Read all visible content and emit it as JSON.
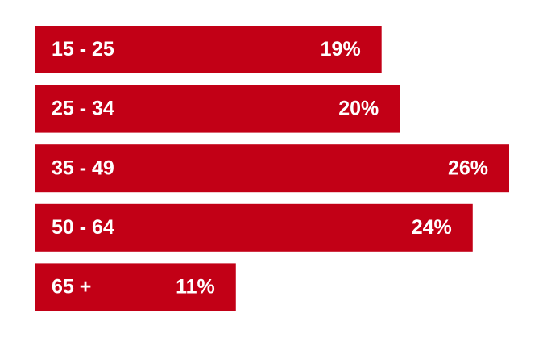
{
  "chart_data": {
    "type": "hbar",
    "categories": [
      "15 - 25",
      "25 - 34",
      "35 - 49",
      "50 - 64",
      "65 +"
    ],
    "values": [
      19,
      20,
      26,
      24,
      11
    ],
    "value_labels": [
      "19%",
      "20%",
      "26%",
      "24%",
      "11%"
    ],
    "color": "#c20016"
  }
}
